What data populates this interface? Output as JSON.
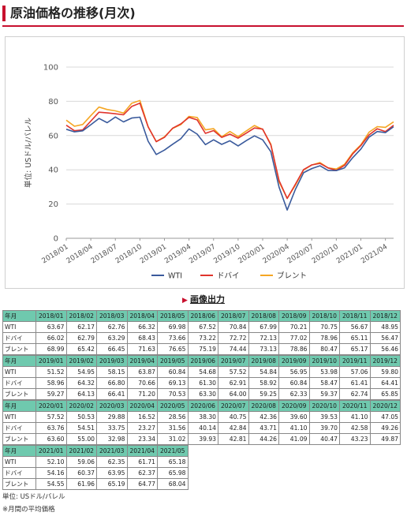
{
  "title": "原油価格の推移(月次)",
  "image_export": {
    "label": "画像出力",
    "arrow": "▶"
  },
  "chart_data": {
    "type": "line",
    "ylabel": "単位: USドル/バレル",
    "ylim": [
      0,
      100
    ],
    "yticks": [
      0,
      20,
      40,
      60,
      80,
      100
    ],
    "grid": true,
    "legend_position": "bottom",
    "x": [
      "2018/01",
      "2018/02",
      "2018/03",
      "2018/04",
      "2018/05",
      "2018/06",
      "2018/07",
      "2018/08",
      "2018/09",
      "2018/10",
      "2018/11",
      "2018/12",
      "2019/01",
      "2019/02",
      "2019/03",
      "2019/04",
      "2019/05",
      "2019/06",
      "2019/07",
      "2019/08",
      "2019/09",
      "2019/10",
      "2019/11",
      "2019/12",
      "2020/01",
      "2020/02",
      "2020/03",
      "2020/04",
      "2020/05",
      "2020/06",
      "2020/07",
      "2020/08",
      "2020/09",
      "2020/10",
      "2020/11",
      "2020/12",
      "2021/01",
      "2021/02",
      "2021/03",
      "2021/04",
      "2021/05"
    ],
    "xtick_labels": [
      "2018/01",
      "2018/04",
      "2018/07",
      "2018/10",
      "2019/01",
      "2019/04",
      "2019/07",
      "2019/10",
      "2020/01",
      "2020/04",
      "2020/07",
      "2020/10",
      "2021/01",
      "2021/04"
    ],
    "series": [
      {
        "name": "WTI",
        "color": "#3a5a9c",
        "values": [
          63.67,
          62.17,
          62.76,
          66.32,
          69.98,
          67.52,
          70.84,
          67.99,
          70.21,
          70.75,
          56.67,
          48.95,
          51.52,
          54.95,
          58.15,
          63.87,
          60.84,
          54.68,
          57.52,
          54.84,
          56.95,
          53.98,
          57.06,
          59.8,
          57.52,
          50.53,
          29.88,
          16.52,
          28.56,
          38.3,
          40.75,
          42.36,
          39.6,
          39.53,
          41.1,
          47.05,
          52.1,
          59.06,
          62.35,
          61.71,
          65.18
        ]
      },
      {
        "name": "ドバイ",
        "color": "#e0342c",
        "values": [
          66.02,
          62.79,
          63.29,
          68.43,
          73.66,
          73.22,
          72.72,
          72.13,
          77.02,
          78.96,
          65.11,
          56.47,
          58.96,
          64.32,
          66.8,
          70.66,
          69.13,
          61.3,
          62.91,
          58.92,
          60.84,
          58.47,
          61.41,
          64.41,
          63.76,
          54.51,
          33.75,
          23.27,
          31.56,
          40.14,
          42.84,
          43.71,
          41.1,
          39.7,
          42.58,
          49.26,
          54.16,
          60.37,
          63.95,
          62.37,
          65.98
        ]
      },
      {
        "name": "ブレント",
        "color": "#f5a623",
        "values": [
          68.99,
          65.42,
          66.45,
          71.63,
          76.65,
          75.19,
          74.44,
          73.13,
          78.86,
          80.47,
          65.17,
          56.46,
          59.27,
          64.13,
          66.41,
          71.2,
          70.53,
          63.3,
          64.0,
          59.25,
          62.33,
          59.37,
          62.74,
          65.85,
          63.6,
          55.0,
          32.98,
          23.34,
          31.02,
          39.93,
          42.81,
          44.26,
          41.09,
          40.47,
          43.23,
          49.87,
          54.55,
          61.96,
          65.19,
          64.77,
          68.04
        ]
      }
    ]
  },
  "table": {
    "header_label": "年月",
    "row_labels": [
      "WTI",
      "ドバイ",
      "ブレント"
    ],
    "blocks": [
      {
        "months": [
          "2018/01",
          "2018/02",
          "2018/03",
          "2018/04",
          "2018/05",
          "2018/06",
          "2018/07",
          "2018/08",
          "2018/09",
          "2018/10",
          "2018/11",
          "2018/12"
        ],
        "rows": [
          [
            "63.67",
            "62.17",
            "62.76",
            "66.32",
            "69.98",
            "67.52",
            "70.84",
            "67.99",
            "70.21",
            "70.75",
            "56.67",
            "48.95"
          ],
          [
            "66.02",
            "62.79",
            "63.29",
            "68.43",
            "73.66",
            "73.22",
            "72.72",
            "72.13",
            "77.02",
            "78.96",
            "65.11",
            "56.47"
          ],
          [
            "68.99",
            "65.42",
            "66.45",
            "71.63",
            "76.65",
            "75.19",
            "74.44",
            "73.13",
            "78.86",
            "80.47",
            "65.17",
            "56.46"
          ]
        ]
      },
      {
        "months": [
          "2019/01",
          "2019/02",
          "2019/03",
          "2019/04",
          "2019/05",
          "2019/06",
          "2019/07",
          "2019/08",
          "2019/09",
          "2019/10",
          "2019/11",
          "2019/12"
        ],
        "rows": [
          [
            "51.52",
            "54.95",
            "58.15",
            "63.87",
            "60.84",
            "54.68",
            "57.52",
            "54.84",
            "56.95",
            "53.98",
            "57.06",
            "59.80"
          ],
          [
            "58.96",
            "64.32",
            "66.80",
            "70.66",
            "69.13",
            "61.30",
            "62.91",
            "58.92",
            "60.84",
            "58.47",
            "61.41",
            "64.41"
          ],
          [
            "59.27",
            "64.13",
            "66.41",
            "71.20",
            "70.53",
            "63.30",
            "64.00",
            "59.25",
            "62.33",
            "59.37",
            "62.74",
            "65.85"
          ]
        ]
      },
      {
        "months": [
          "2020/01",
          "2020/02",
          "2020/03",
          "2020/04",
          "2020/05",
          "2020/06",
          "2020/07",
          "2020/08",
          "2020/09",
          "2020/10",
          "2020/11",
          "2020/12"
        ],
        "rows": [
          [
            "57.52",
            "50.53",
            "29.88",
            "16.52",
            "28.56",
            "38.30",
            "40.75",
            "42.36",
            "39.60",
            "39.53",
            "41.10",
            "47.05"
          ],
          [
            "63.76",
            "54.51",
            "33.75",
            "23.27",
            "31.56",
            "40.14",
            "42.84",
            "43.71",
            "41.10",
            "39.70",
            "42.58",
            "49.26"
          ],
          [
            "63.60",
            "55.00",
            "32.98",
            "23.34",
            "31.02",
            "39.93",
            "42.81",
            "44.26",
            "41.09",
            "40.47",
            "43.23",
            "49.87"
          ]
        ]
      },
      {
        "months": [
          "2021/01",
          "2021/02",
          "2021/03",
          "2021/04",
          "2021/05"
        ],
        "rows": [
          [
            "52.10",
            "59.06",
            "62.35",
            "61.71",
            "65.18"
          ],
          [
            "54.16",
            "60.37",
            "63.95",
            "62.37",
            "65.98"
          ],
          [
            "54.55",
            "61.96",
            "65.19",
            "64.77",
            "68.04"
          ]
        ]
      }
    ]
  },
  "notes": {
    "unit": "単位: USドル/バレル",
    "average": "※月間の平均価格"
  }
}
